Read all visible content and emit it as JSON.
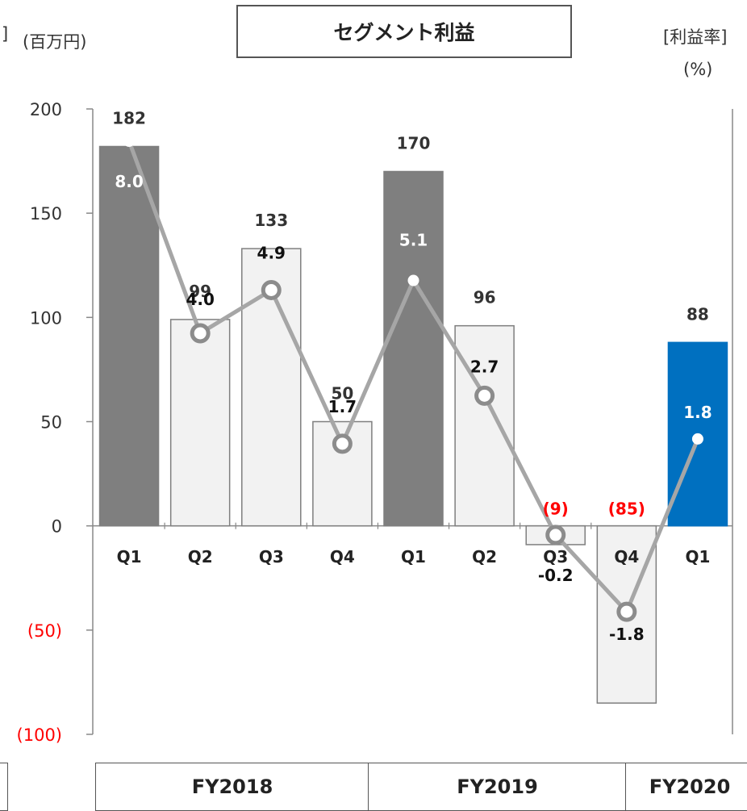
{
  "chart_data": {
    "type": "bar",
    "title": "セグメント利益",
    "y_left_unit": "(百万円)",
    "y_right_unit_line1": "[利益率]",
    "y_right_unit_line2": "(%)",
    "left_cut_text": "]",
    "ylim": [
      -100,
      200
    ],
    "y_ticks": [
      {
        "value": 200,
        "label": "200"
      },
      {
        "value": 150,
        "label": "150"
      },
      {
        "value": 100,
        "label": "100"
      },
      {
        "value": 50,
        "label": "50"
      },
      {
        "value": 0,
        "label": "0"
      },
      {
        "value": -50,
        "label": "(50)"
      },
      {
        "value": -100,
        "label": "(100)"
      }
    ],
    "categories": [
      "Q1",
      "Q2",
      "Q3",
      "Q4",
      "Q1",
      "Q2",
      "Q3",
      "Q4",
      "Q1"
    ],
    "groups": [
      {
        "label": "FY2018",
        "from": 0,
        "to": 3
      },
      {
        "label": "FY2019",
        "from": 4,
        "to": 7
      },
      {
        "label": "FY2020",
        "from": 8,
        "to": 8
      }
    ],
    "series": [
      {
        "name": "セグメント利益",
        "values": [
          182,
          99,
          133,
          50,
          170,
          96,
          -9,
          -85,
          88
        ],
        "labels": [
          "182",
          "99",
          "133",
          "50",
          "170",
          "96",
          "(9)",
          "(85)",
          "88"
        ]
      },
      {
        "name": "利益率",
        "values": [
          8.0,
          4.0,
          4.9,
          1.7,
          5.1,
          2.7,
          -0.2,
          -1.8,
          1.8
        ],
        "labels": [
          "8.0",
          "4.0",
          "4.9",
          "1.7",
          "5.1",
          "2.7",
          "-0.2",
          "-1.8",
          "1.8"
        ]
      }
    ],
    "bar_colors": [
      "#7f7f7f",
      "#f2f2f2",
      "#f2f2f2",
      "#f2f2f2",
      "#7f7f7f",
      "#f2f2f2",
      "#f2f2f2",
      "#f2f2f2",
      "#0070c0"
    ],
    "negative_label_color": "#ff0000",
    "line_color": "#a6a6a6"
  }
}
